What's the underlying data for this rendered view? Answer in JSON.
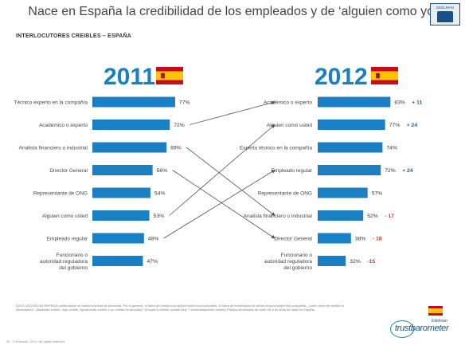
{
  "header": {
    "title": "Nace en España la credibilidad de los empleados y de ‘alguien como yo’",
    "subtitle": "INTERLOCUTORES CREIBLES – ESPAÑA",
    "logo_text": "EDELMAN"
  },
  "colors": {
    "bar": "#1b7fc4",
    "year": "#1b7fc4",
    "positive_change": "#1b5fb0",
    "negative_change": "#c0392b",
    "arrow": "#555555",
    "flag_red": "#c60b1e",
    "flag_yellow": "#ffc400"
  },
  "chart_data": [
    {
      "type": "bar",
      "orientation": "horizontal",
      "title": "2011",
      "xlim": [
        0,
        100
      ],
      "categories": [
        "Técnico experto en la compañía",
        "Académico o experto",
        "Analista financiero o industrial",
        "Director General",
        "Representante de ONG",
        "Alguien como usted",
        "Empleado regular",
        "Funcionario o autoridad reguladora del gobierno"
      ],
      "values": [
        77,
        72,
        69,
        56,
        54,
        53,
        48,
        47
      ],
      "value_labels": [
        "77%",
        "72%",
        "69%",
        "56%",
        "54%",
        "53%",
        "48%",
        "47%"
      ]
    },
    {
      "type": "bar",
      "orientation": "horizontal",
      "title": "2012",
      "xlim": [
        0,
        100
      ],
      "categories": [
        "Académico o experto",
        "Alguien como usted",
        "Experto técnico en la compañía",
        "Empleado regular",
        "Representante de ONG",
        "Analista financiero o industrial",
        "Director General",
        "Funcionario o autoridad reguladora del gobierno"
      ],
      "values": [
        83,
        77,
        74,
        72,
        57,
        52,
        38,
        32
      ],
      "value_labels": [
        "83%",
        "77%",
        "74%",
        "72%",
        "57%",
        "52%",
        "38%",
        "32%"
      ],
      "changes": [
        "+ 11",
        "+ 24",
        "",
        "+ 24",
        "",
        "- 17",
        "- 18",
        "-15"
      ]
    }
  ],
  "arrows": [
    {
      "from": 1,
      "to": 0
    },
    {
      "from": 5,
      "to": 1
    },
    {
      "from": 6,
      "to": 3
    },
    {
      "from": 2,
      "to": 5
    },
    {
      "from": 3,
      "to": 6
    }
  ],
  "footer": {
    "footnote": "Q219-226 [SEGUN REPEDIA continuación se indica una lista de personas. Por lo general, si fuera de formar una opinión sobre una compañía, si fuera de información de dicha persona sobre esa compañía, ¿cómo sería de creíble la información? ¿Bastante creíble, muy creíble, ligeramente creíble o no creíble en absoluto? (Escala 9 niveles; creíble Muy + extremadamente creíble) Público informados de entre 25 a 64 años de edad en España",
    "copyright": "© Edelman, 2012. All rights reserved.",
    "page": "26",
    "brand": "Edelman",
    "product": "trustbarometer"
  }
}
